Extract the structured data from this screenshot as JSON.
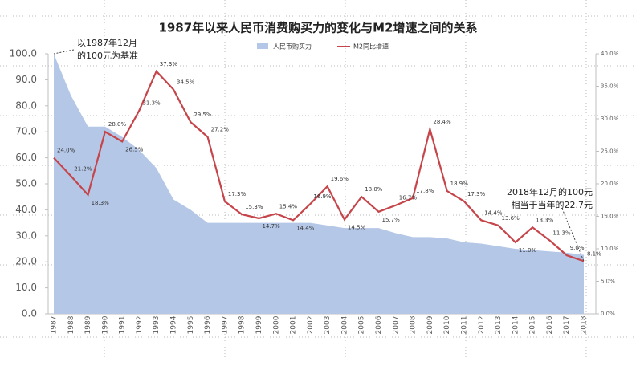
{
  "chart_data": {
    "type": "combo",
    "title": "1987年以来人民币消费购买力的变化与M2增速之间的关系",
    "categories": [
      "1987",
      "1988",
      "1989",
      "1990",
      "1991",
      "1992",
      "1993",
      "1994",
      "1995",
      "1996",
      "1997",
      "1998",
      "1999",
      "2000",
      "2001",
      "2002",
      "2003",
      "2004",
      "2005",
      "2006",
      "2007",
      "2008",
      "2009",
      "2010",
      "2011",
      "2012",
      "2013",
      "2014",
      "2015",
      "2016",
      "2017",
      "2018"
    ],
    "series": [
      {
        "name": "人民币购买力",
        "type": "area",
        "color": "#b4c7e7",
        "values": [
          100,
          84,
          72,
          72,
          68,
          63,
          56,
          44,
          40,
          35,
          35,
          35,
          35,
          35,
          35,
          35,
          34,
          33,
          33,
          33,
          31,
          29.5,
          29.5,
          29,
          27.5,
          27,
          26,
          25,
          24.5,
          24,
          23.5,
          22.7
        ]
      },
      {
        "name": "M2同比增速",
        "type": "line",
        "axis": "y2",
        "color": "#c5454a",
        "values": [
          24.0,
          21.2,
          18.3,
          28.0,
          26.5,
          31.3,
          37.3,
          34.5,
          29.5,
          27.2,
          17.3,
          15.3,
          14.7,
          15.4,
          14.4,
          16.9,
          19.6,
          14.5,
          18.0,
          15.7,
          16.7,
          17.8,
          28.4,
          18.9,
          17.3,
          14.4,
          13.6,
          11.0,
          13.3,
          11.3,
          9.0,
          8.1
        ],
        "value_labels": [
          "24.0%",
          "21.2%",
          "18.3%",
          "28.0%",
          "26.5%",
          "31.3%",
          "37.3%",
          "34.5%",
          "29.5%",
          "27.2%",
          "17.3%",
          "15.3%",
          "14.7%",
          "15.4%",
          "14.4%",
          "16.9%",
          "19.6%",
          "14.5%",
          "18.0%",
          "15.7%",
          "16.7%",
          "17.8%",
          "28.4%",
          "18.9%",
          "17.3%",
          "14.4%",
          "13.6%",
          "11.0%",
          "13.3%",
          "11.3%",
          "9.0%",
          "8.1%"
        ]
      }
    ],
    "ylim": [
      0,
      100
    ],
    "yticks": [
      {
        "value": 0,
        "label": "0.0"
      },
      {
        "value": 10,
        "label": "10.0"
      },
      {
        "value": 20,
        "label": "20.0"
      },
      {
        "value": 30,
        "label": "30.0"
      },
      {
        "value": 40,
        "label": "40.0"
      },
      {
        "value": 50,
        "label": "50.0"
      },
      {
        "value": 60,
        "label": "60.0"
      },
      {
        "value": 70,
        "label": "70.0"
      },
      {
        "value": 80,
        "label": "80.0"
      },
      {
        "value": 90,
        "label": "90.0"
      },
      {
        "value": 100,
        "label": "100.0"
      }
    ],
    "y2lim": [
      0,
      40
    ],
    "y2ticks": [
      {
        "value": 0,
        "label": "0.0%"
      },
      {
        "value": 5,
        "label": "5.0%"
      },
      {
        "value": 10,
        "label": "10.0%"
      },
      {
        "value": 15,
        "label": "15.0%"
      },
      {
        "value": 20,
        "label": "20.0%"
      },
      {
        "value": 25,
        "label": "25.0%"
      },
      {
        "value": 30,
        "label": "30.0%"
      },
      {
        "value": 35,
        "label": "35.0%"
      },
      {
        "value": 40,
        "label": "40.0%"
      }
    ],
    "annotations": [
      [
        "以1987年12月",
        "的100元为基准"
      ],
      [
        "2018年12月的100元",
        "相当于当年的22.7元"
      ]
    ],
    "legend": "top"
  }
}
